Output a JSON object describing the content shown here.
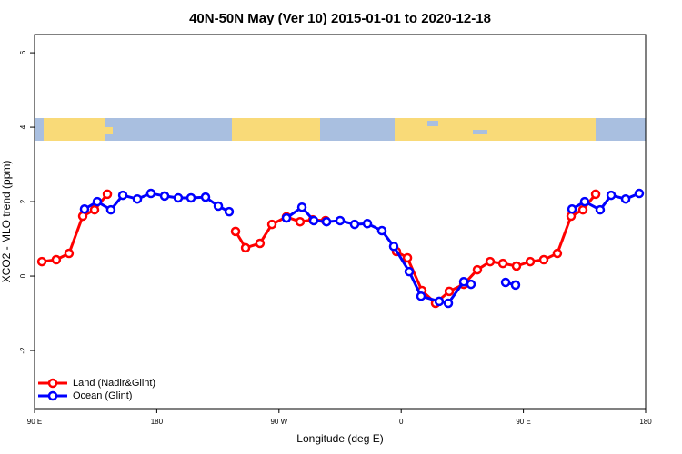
{
  "chart_data": {
    "type": "line",
    "title": "40N-50N May (Ver 10)   2015-01-01 to 2020-12-18",
    "x_label": "Longitude (deg E)",
    "y_label": "XCO2 - MLO trend (ppm)",
    "xlim": [
      90,
      540
    ],
    "xticks": [
      {
        "value": 90,
        "label": "90 E"
      },
      180,
      {
        "value": 270,
        "label": "90 W"
      },
      {
        "value": 360,
        "label": "0"
      },
      {
        "value": 450,
        "label": "90 E"
      },
      {
        "value": 540,
        "label": "180"
      }
    ],
    "ylim": [
      -3.56,
      6.49
    ],
    "yticks": [
      -2,
      0,
      2,
      4,
      6
    ],
    "legend": "bottom-left",
    "series": [
      {
        "name": "Land (Nadir&Glint)",
        "color": "#ff0000",
        "x": [
          95.4,
          106,
          115.4,
          125.5,
          134.2,
          143.6,
          190,
          238,
          245.4,
          256,
          264.8,
          275.5,
          285.5,
          294.9,
          304.3,
          330,
          356.5,
          364.6,
          375.3,
          385.3,
          395.4,
          406.1,
          416.1,
          425.5,
          434.9,
          444.9,
          455,
          465,
          475,
          485.1,
          493.8,
          503.2
        ],
        "values": [
          0.39,
          0.44,
          0.61,
          1.61,
          1.78,
          2.2,
          null,
          1.2,
          0.76,
          0.88,
          1.39,
          1.59,
          1.46,
          1.51,
          1.49,
          null,
          0.66,
          0.49,
          -0.39,
          -0.73,
          -0.41,
          -0.22,
          0.17,
          0.39,
          0.34,
          0.27,
          0.39,
          0.44,
          0.61,
          1.61,
          1.78,
          2.2
        ]
      },
      {
        "name": "Ocean (Glint)",
        "color": "#0000ff",
        "x": [
          126.8,
          136.2,
          146.2,
          155,
          165.7,
          175.7,
          185.8,
          195.8,
          205.2,
          215.9,
          225.3,
          233.3,
          255,
          275.5,
          286.9,
          295.6,
          305,
          315,
          325.7,
          335.1,
          345.8,
          354.5,
          365.9,
          374.6,
          388,
          394.7,
          406.1,
          411.4,
          425,
          436.9,
          444.2,
          465,
          485.8,
          495.1,
          506.5,
          514.6,
          525.3,
          535.3
        ],
        "values": [
          1.8,
          2.0,
          1.78,
          2.17,
          2.07,
          2.22,
          2.15,
          2.1,
          2.1,
          2.12,
          1.88,
          1.73,
          null,
          1.56,
          1.85,
          1.49,
          1.46,
          1.49,
          1.39,
          1.41,
          1.22,
          0.8,
          0.12,
          -0.54,
          -0.68,
          -0.73,
          -0.15,
          -0.22,
          null,
          -0.17,
          -0.24,
          null,
          1.8,
          2.0,
          1.78,
          2.17,
          2.07,
          2.22
        ]
      }
    ]
  }
}
